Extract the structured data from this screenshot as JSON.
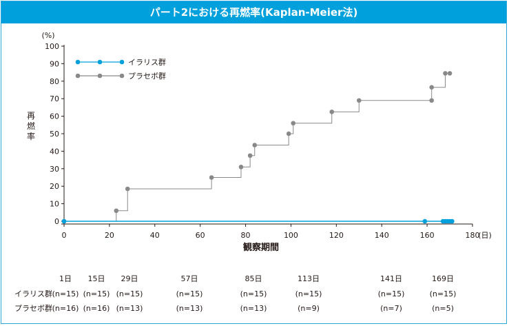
{
  "banner_title": "パート2における再燃率(Kaplan-Meier法)",
  "chart_data": {
    "type": "line",
    "step": true,
    "ylabel": "再燃率",
    "yunit": "(%)",
    "xlabel": "観察期間",
    "xunit": "(日)",
    "xlim": [
      0,
      180
    ],
    "ylim": [
      0,
      100
    ],
    "xticks": [
      0,
      20,
      40,
      60,
      80,
      100,
      120,
      140,
      160,
      180
    ],
    "yticks": [
      0,
      10,
      20,
      30,
      40,
      50,
      60,
      70,
      80,
      90,
      100
    ],
    "legend_position": "top-left",
    "series": [
      {
        "name": "イラリス群",
        "color": "#00a0dc",
        "x": [
          0,
          159,
          167,
          168,
          169,
          170,
          171
        ],
        "y": [
          0,
          0,
          0,
          0,
          0,
          0,
          0
        ],
        "markers_x": [
          0,
          159,
          167,
          168,
          169,
          170,
          171
        ],
        "markers_y": [
          0,
          0,
          0,
          0,
          0,
          0,
          0
        ]
      },
      {
        "name": "プラセボ群",
        "color": "#898989",
        "x": [
          0,
          23,
          28,
          65,
          78,
          82,
          84,
          99,
          101,
          118,
          130,
          162,
          168
        ],
        "y": [
          0,
          6,
          18.5,
          25,
          31,
          37.5,
          43.5,
          50,
          56,
          62.5,
          69,
          76.5,
          84.5
        ],
        "markers_x": [
          0,
          23,
          28,
          65,
          78,
          82,
          84,
          99,
          101,
          118,
          130,
          162,
          162,
          168,
          170
        ],
        "markers_y": [
          0,
          6,
          18.5,
          25,
          31,
          37.5,
          43.5,
          50,
          56,
          62.5,
          69,
          69,
          76.5,
          84.5,
          84.5
        ]
      }
    ]
  },
  "risk_table": {
    "days": [
      {
        "label": "1日",
        "x": 1
      },
      {
        "label": "15日",
        "x": 15
      },
      {
        "label": "29日",
        "x": 29
      },
      {
        "label": "57日",
        "x": 57
      },
      {
        "label": "85日",
        "x": 85
      },
      {
        "label": "113日",
        "x": 113
      },
      {
        "label": "141日",
        "x": 141
      },
      {
        "label": "169日",
        "x": 169
      }
    ],
    "rows": [
      {
        "group": "イラリス群",
        "values": [
          "(n=15)",
          "(n=15)",
          "(n=15)",
          "(n=15)",
          "(n=15)",
          "(n=15)",
          "(n=15)",
          "(n=15)"
        ]
      },
      {
        "group": "プラセボ群",
        "values": [
          "(n=16)",
          "(n=16)",
          "(n=13)",
          "(n=13)",
          "(n=13)",
          "(n=9)",
          "(n=7)",
          "(n=5)"
        ]
      }
    ]
  }
}
